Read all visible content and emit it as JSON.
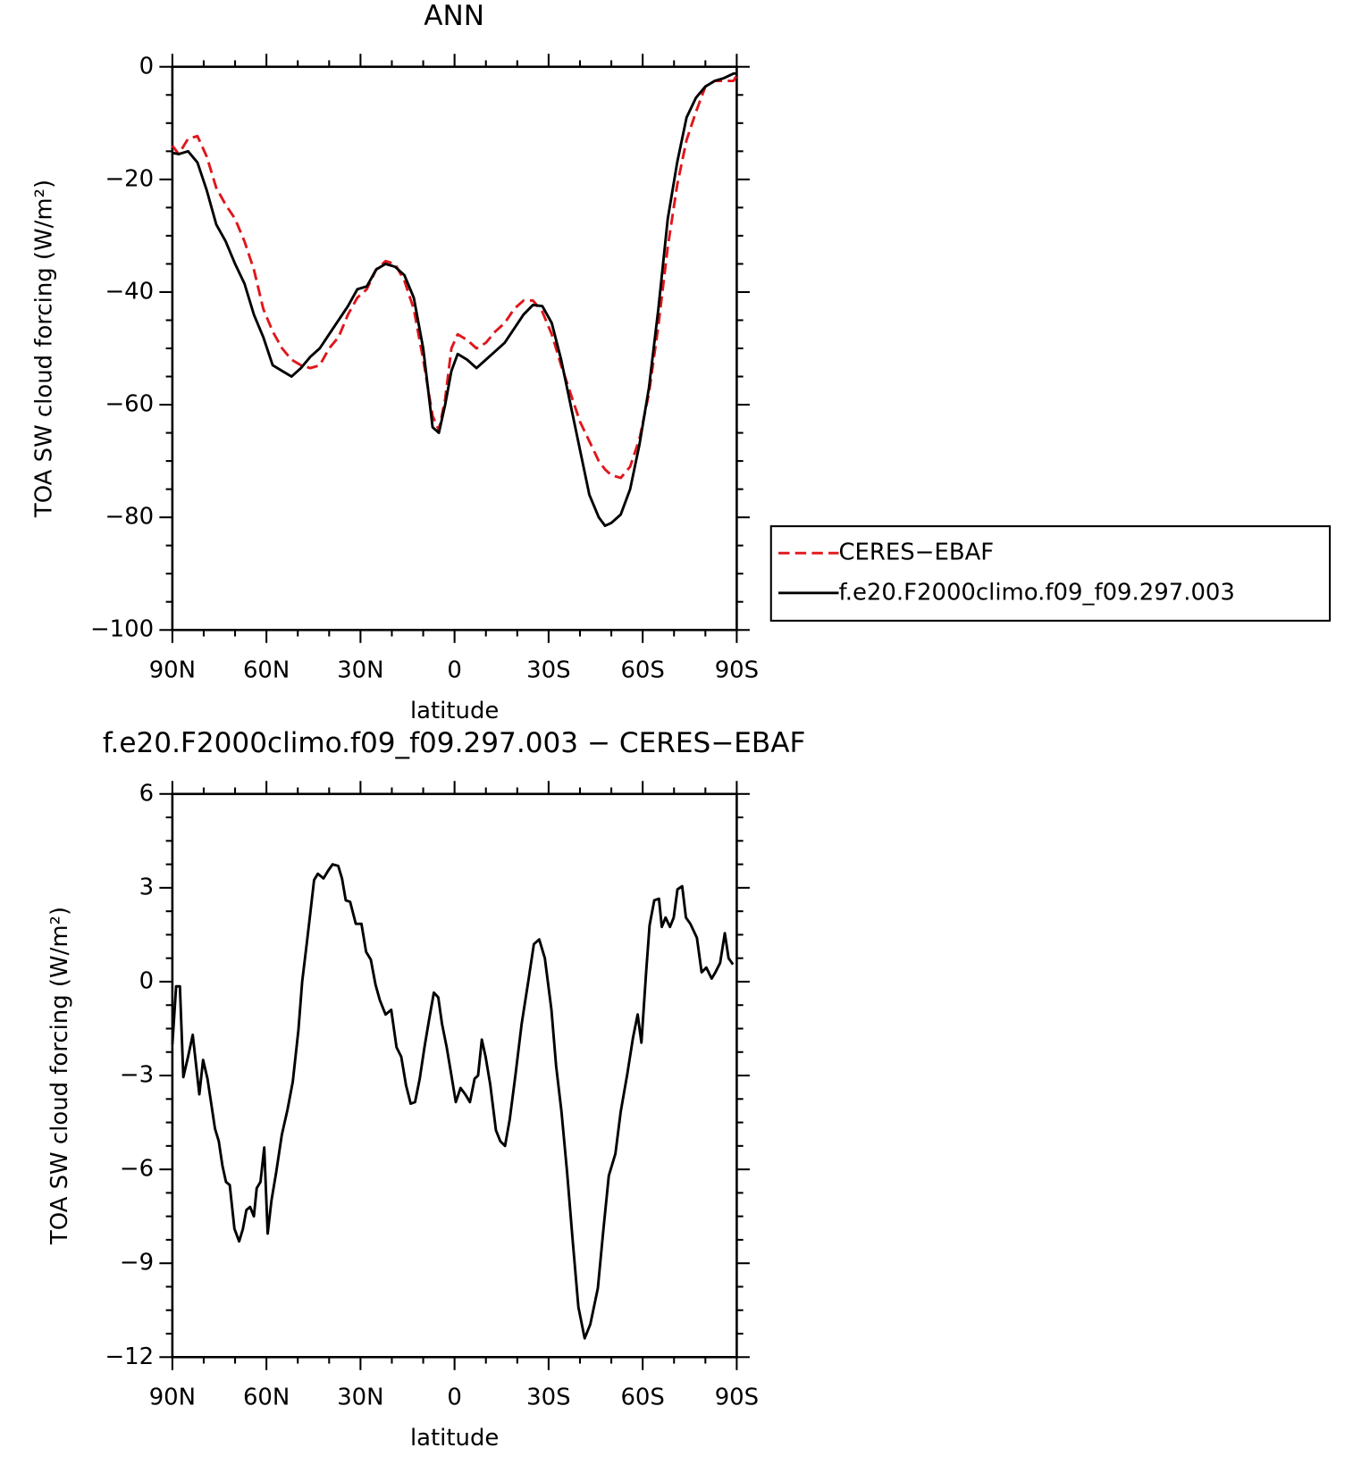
{
  "chart_data": [
    {
      "type": "line",
      "title": "ANN",
      "xlabel": "latitude",
      "ylabel": "TOA SW cloud forcing (W/m²)",
      "x": [
        90,
        88,
        85,
        82,
        79,
        76,
        73,
        70,
        67,
        64,
        61,
        58,
        55,
        52,
        49,
        46,
        43,
        40,
        37,
        34,
        31,
        28,
        25,
        22,
        19,
        16,
        13,
        10,
        7,
        5,
        3,
        1,
        -1,
        -4,
        -7,
        -10,
        -13,
        -16,
        -19,
        -22,
        -25,
        -28,
        -31,
        -34,
        -37,
        -40,
        -43,
        -46,
        -48,
        -50,
        -53,
        -56,
        -59,
        -62,
        -65,
        -68,
        -71,
        -74,
        -77,
        -80,
        -83,
        -86,
        -89,
        -90
      ],
      "series": [
        {
          "name": "CERES−EBAF",
          "color": "#e0161b",
          "dash": true,
          "values": [
            -14,
            -15.5,
            -12.8,
            -12.3,
            -16,
            -21.5,
            -24.5,
            -27,
            -31,
            -36,
            -43,
            -47,
            -50,
            -52,
            -53,
            -53.5,
            -53,
            -50,
            -48,
            -44,
            -41,
            -39.5,
            -36,
            -34.5,
            -35,
            -38,
            -43,
            -52,
            -62,
            -64.5,
            -59,
            -50,
            -47.5,
            -48.5,
            -50,
            -49,
            -47,
            -45.5,
            -43,
            -41.5,
            -41.5,
            -43.5,
            -47.5,
            -53,
            -58,
            -63,
            -66.5,
            -70,
            -71.5,
            -72.5,
            -73,
            -71,
            -66,
            -58,
            -46,
            -32,
            -21,
            -13,
            -8,
            -3.5,
            -2.5,
            -2.5,
            -2.5,
            -1.5
          ]
        },
        {
          "name": "f.e20.F2000climo.f09_f09.297.003",
          "color": "#000000",
          "dash": false,
          "values": [
            -15.3,
            -15.5,
            -15,
            -17,
            -22,
            -28,
            -31,
            -35,
            -38.5,
            -44,
            -48,
            -53,
            -54,
            -55,
            -53.5,
            -51.5,
            -50,
            -47.5,
            -45,
            -42.5,
            -39.5,
            -39,
            -36,
            -35,
            -35.5,
            -37,
            -41,
            -50,
            -64,
            -65,
            -60,
            -54,
            -51,
            -52,
            -53.5,
            -52,
            -50.5,
            -49,
            -46.5,
            -44,
            -42.3,
            -42.5,
            -45.5,
            -52,
            -60,
            -68,
            -76,
            -80,
            -81.5,
            -81,
            -79.5,
            -75,
            -67,
            -57,
            -43,
            -27,
            -17,
            -9,
            -5.5,
            -3.5,
            -2.5,
            -2,
            -1.2,
            -1.2
          ]
        }
      ],
      "xlim": [
        90,
        -90
      ],
      "xticks": [
        {
          "value": 90,
          "label": "90N"
        },
        {
          "value": 60,
          "label": "60N"
        },
        {
          "value": 30,
          "label": "30N"
        },
        0,
        {
          "value": -30,
          "label": "30S"
        },
        {
          "value": -60,
          "label": "60S"
        },
        {
          "value": -90,
          "label": "90S"
        }
      ],
      "ylim": [
        -100,
        0
      ],
      "yticks": [
        0,
        -20,
        -40,
        -60,
        -80,
        -100
      ],
      "legend": "outside-right"
    },
    {
      "type": "line",
      "title": "f.e20.F2000climo.f09_f09.297.003 − CERES−EBAF",
      "xlabel": "latitude",
      "ylabel": "TOA SW cloud forcing (W/m²)",
      "x": [
        90,
        88.8,
        87.6,
        86.5,
        85.0,
        83.5,
        81.4,
        80.2,
        78.8,
        76.4,
        75.2,
        74.0,
        72.9,
        71.7,
        70.2,
        68.7,
        67.5,
        66.4,
        65.2,
        64.0,
        63.1,
        61.9,
        60.7,
        59.6,
        58.4,
        56.9,
        55.1,
        53.3,
        51.6,
        49.8,
        48.6,
        47.1,
        46.0,
        44.8,
        43.6,
        41.8,
        40.3,
        38.9,
        37.1,
        35.9,
        34.7,
        33.3,
        31.5,
        29.7,
        28.2,
        26.7,
        25.2,
        23.8,
        22.0,
        20.2,
        18.5,
        17.0,
        15.5,
        14.0,
        12.6,
        11.1,
        9.6,
        8.1,
        6.6,
        5.2,
        4.0,
        2.5,
        1.0,
        -0.4,
        -1.9,
        -3.4,
        -4.9,
        -6.4,
        -7.5,
        -8.7,
        -9.9,
        -11.4,
        -13.2,
        -14.6,
        -16.1,
        -17.6,
        -19.4,
        -21.4,
        -23.5,
        -25.3,
        -27.0,
        -28.8,
        -30.9,
        -32.4,
        -34.1,
        -35.9,
        -37.7,
        -39.5,
        -41.5,
        -43.3,
        -45.7,
        -47.4,
        -49.2,
        -51.3,
        -53.0,
        -55.1,
        -56.9,
        -58.4,
        -59.6,
        -61.1,
        -62.2,
        -63.7,
        -65.2,
        -66.1,
        -67.3,
        -68.7,
        -69.9,
        -71.1,
        -72.6,
        -73.8,
        -75.2,
        -77.3,
        -78.8,
        -80.3,
        -82.0,
        -83.2,
        -84.7,
        -86.2,
        -87.4,
        -88.8
      ],
      "values": [
        -2.0,
        -0.15,
        -0.15,
        -3.05,
        -2.4,
        -1.7,
        -3.6,
        -2.5,
        -3.1,
        -4.7,
        -5.1,
        -5.9,
        -6.4,
        -6.5,
        -7.9,
        -8.3,
        -7.9,
        -7.3,
        -7.2,
        -7.5,
        -6.6,
        -6.4,
        -5.3,
        -8.05,
        -7.0,
        -6.1,
        -4.9,
        -4.1,
        -3.2,
        -1.55,
        0,
        1.25,
        2.2,
        3.25,
        3.45,
        3.3,
        3.55,
        3.75,
        3.7,
        3.3,
        2.6,
        2.55,
        1.85,
        1.85,
        0.95,
        0.7,
        -0.1,
        -0.6,
        -1.05,
        -0.9,
        -2.1,
        -2.4,
        -3.3,
        -3.9,
        -3.85,
        -3.1,
        -2.1,
        -1.2,
        -0.35,
        -0.5,
        -1.35,
        -2.1,
        -3.0,
        -3.85,
        -3.4,
        -3.6,
        -3.85,
        -3.1,
        -3.0,
        -1.85,
        -2.4,
        -3.3,
        -4.75,
        -5.1,
        -5.25,
        -4.4,
        -3.0,
        -1.35,
        0,
        1.2,
        1.35,
        0.75,
        -0.9,
        -2.7,
        -4.15,
        -6.1,
        -8.3,
        -10.4,
        -11.4,
        -10.95,
        -9.8,
        -8.0,
        -6.2,
        -5.5,
        -4.15,
        -2.95,
        -1.8,
        -1.05,
        -1.95,
        0.3,
        1.8,
        2.6,
        2.65,
        1.75,
        2.05,
        1.75,
        2.05,
        2.95,
        3.05,
        2.05,
        1.85,
        1.4,
        0.3,
        0.45,
        0.1,
        0.3,
        0.6,
        1.55,
        0.75,
        0.55
      ],
      "color": "#000000",
      "xlim": [
        90,
        -90
      ],
      "xticks": [
        {
          "value": 90,
          "label": "90N"
        },
        {
          "value": 60,
          "label": "60N"
        },
        {
          "value": 30,
          "label": "30N"
        },
        0,
        {
          "value": -30,
          "label": "30S"
        },
        {
          "value": -60,
          "label": "60S"
        },
        {
          "value": -90,
          "label": "90S"
        }
      ],
      "ylim": [
        -12,
        6
      ],
      "yticks": [
        6,
        3,
        0,
        -3,
        -6,
        -9,
        -12
      ]
    }
  ]
}
